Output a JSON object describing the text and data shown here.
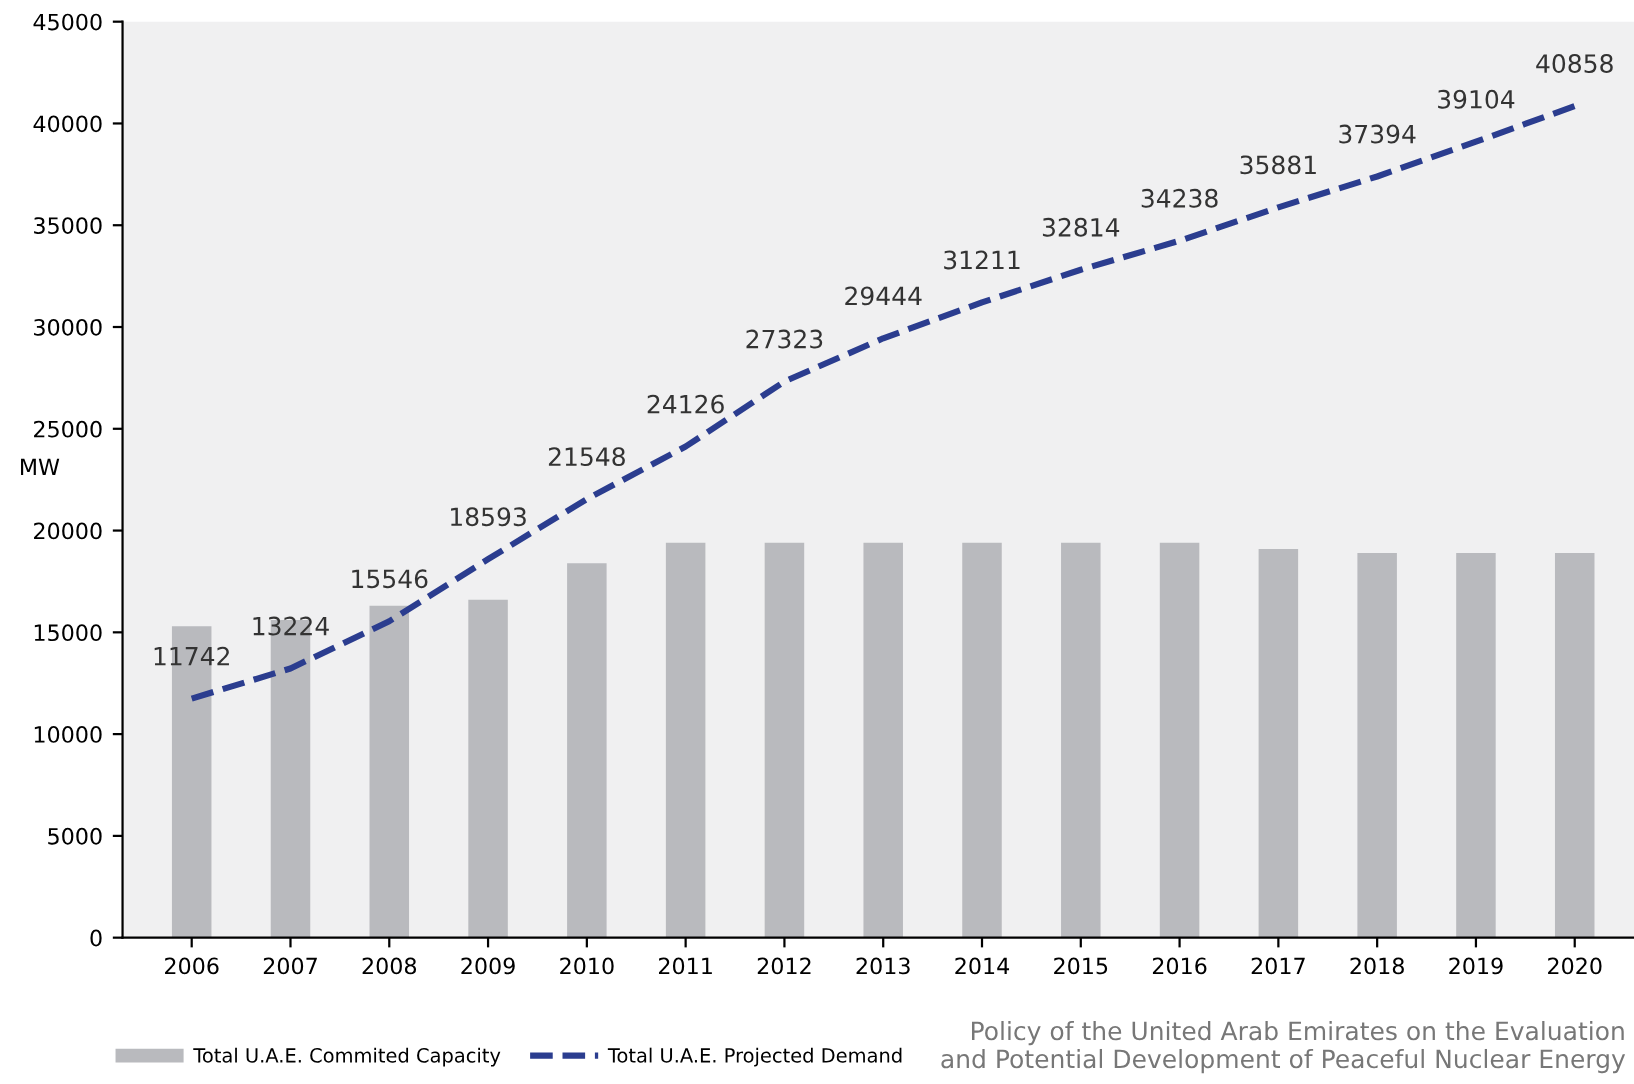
{
  "chart_data": {
    "type": "bar",
    "ylabel": "MW",
    "categories": [
      "2006",
      "2007",
      "2008",
      "2009",
      "2010",
      "2011",
      "2012",
      "2013",
      "2014",
      "2015",
      "2016",
      "2017",
      "2018",
      "2019",
      "2020"
    ],
    "series": [
      {
        "name": "Total U.A.E. Commited Capacity",
        "color": "#b9babe",
        "values": [
          15300,
          15600,
          16300,
          16600,
          18400,
          19400,
          19400,
          19400,
          19400,
          19400,
          19400,
          19100,
          18900,
          18900,
          18900
        ]
      },
      {
        "name": "Total U.A.E. Projected Demand",
        "type": "line",
        "color": "#2b3d8f",
        "line_style": "dashed",
        "data_labels": true,
        "values": [
          11742,
          13224,
          15546,
          18593,
          21548,
          24126,
          27323,
          29444,
          31211,
          32814,
          34238,
          35881,
          37394,
          39104,
          40858
        ]
      }
    ],
    "ylim": [
      0,
      45000
    ],
    "yticks": [
      0,
      5000,
      10000,
      15000,
      20000,
      25000,
      30000,
      35000,
      40000,
      45000
    ],
    "grid": false,
    "legend": "bottom",
    "annotations": [
      "Policy of the United Arab Emirates on the Evaluation\nand Potential Development of Peaceful Nuclear Energy"
    ]
  }
}
